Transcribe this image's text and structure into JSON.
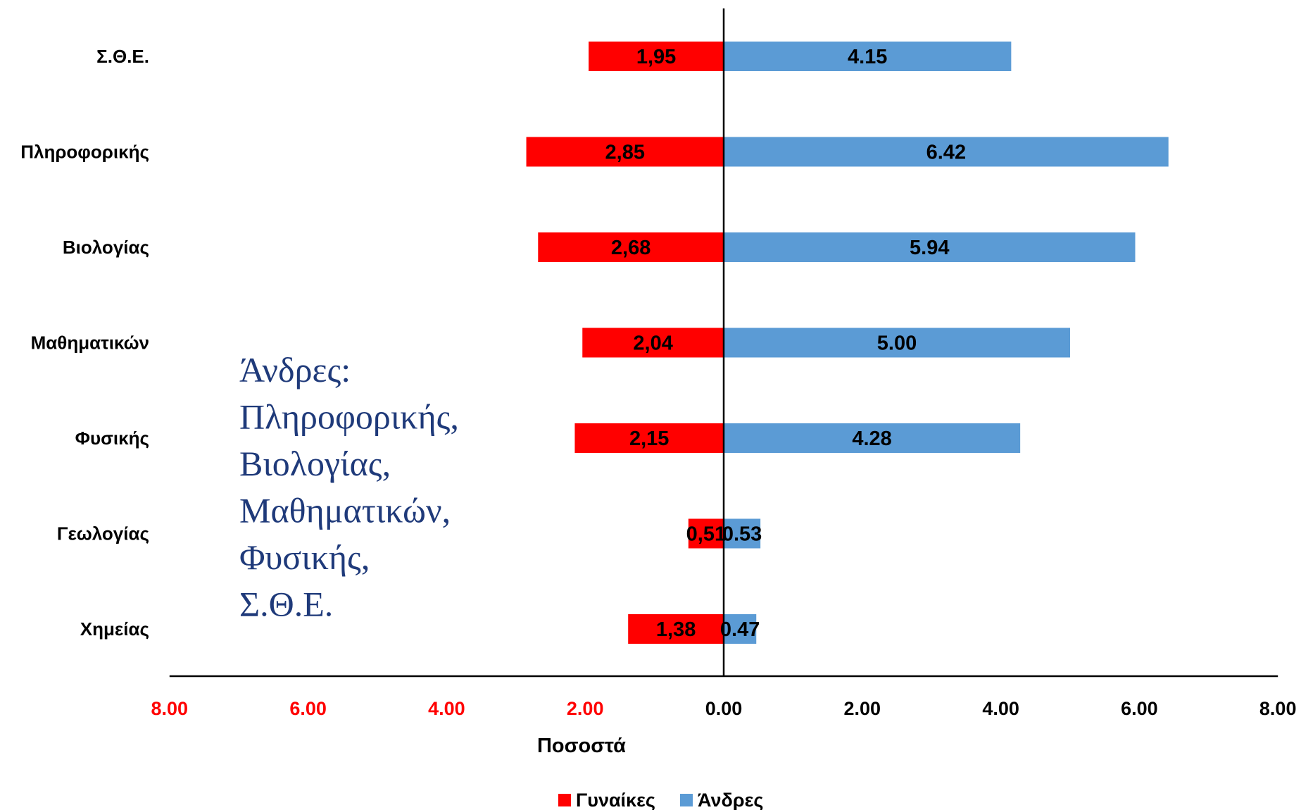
{
  "chart_data": {
    "type": "bar",
    "orientation": "horizontal-diverging",
    "categories": [
      "Σ.Θ.Ε.",
      "Πληροφορικής",
      "Βιολογίας",
      "Μαθηματικών",
      "Φυσικής",
      "Γεωλογίας",
      "Χημείας"
    ],
    "series": [
      {
        "name": "Γυναίκες",
        "color": "#ff0000",
        "direction": "left",
        "values": [
          1.95,
          2.85,
          2.68,
          2.04,
          2.15,
          0.51,
          1.38
        ],
        "labels": [
          "1,95",
          "2,85",
          "2,68",
          "2,04",
          "2,15",
          "0,51",
          "1,38"
        ]
      },
      {
        "name": "Άνδρες",
        "color": "#5b9bd5",
        "direction": "right",
        "values": [
          4.15,
          6.42,
          5.94,
          5.0,
          4.28,
          0.53,
          0.47
        ],
        "labels": [
          "4.15",
          "6.42",
          "5.94",
          "5.00",
          "4.28",
          "0.53",
          "0.47"
        ]
      }
    ],
    "xaxis": {
      "range": [
        -8,
        8
      ],
      "ticks": [
        -8,
        -6,
        -4,
        -2,
        0,
        2,
        4,
        6,
        8
      ],
      "tick_labels": [
        "8.00",
        "6.00",
        "4.00",
        "2.00",
        "0.00",
        "2.00",
        "4.00",
        "6.00",
        "8.00"
      ],
      "negative_tick_color": "#ff0000",
      "positive_tick_color": "#000000"
    },
    "xlabel": "Ποσοστά",
    "ylabel": "",
    "grid": false,
    "legend": {
      "placement": "bottom-center",
      "entries": [
        "Γυναίκες",
        "Άνδρες"
      ]
    },
    "annotation": {
      "lines": [
        "Άνδρες:",
        "Πληροφορικής,",
        "Βιολογίας,",
        "Μαθηματικών,",
        "Φυσικής,",
        "Σ.Θ.Ε."
      ],
      "color": "#1f3a7a"
    }
  }
}
